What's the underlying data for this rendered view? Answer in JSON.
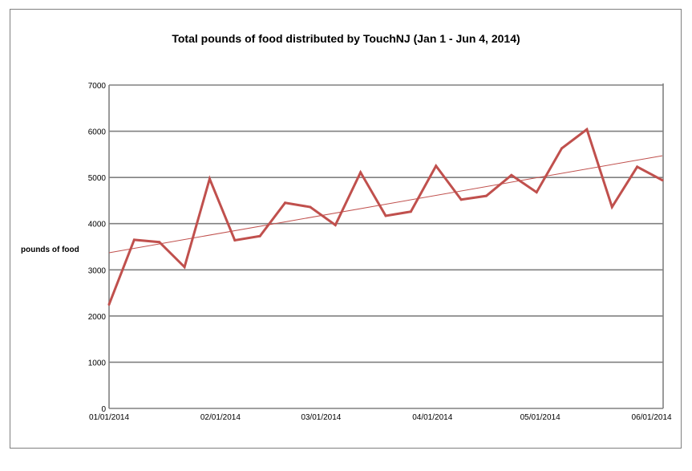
{
  "chart_data": {
    "type": "line",
    "title": "Total pounds of food distributed by TouchNJ (Jan 1 - Jun 4, 2014)",
    "xlabel": "",
    "ylabel": "pounds of food",
    "ylim": [
      0,
      7000
    ],
    "yticks": [
      0,
      1000,
      2000,
      3000,
      4000,
      5000,
      6000,
      7000
    ],
    "xlim": [
      "2014-01-01",
      "2014-06-04"
    ],
    "xticks": [
      "01/01/2014",
      "02/01/2014",
      "03/01/2014",
      "04/01/2014",
      "05/01/2014",
      "06/01/2014"
    ],
    "xtick_dates": [
      "2014-01-01",
      "2014-02-01",
      "2014-03-01",
      "2014-04-01",
      "2014-05-01",
      "2014-06-01"
    ],
    "grid": "horizontal",
    "series": [
      {
        "color": "#c0504d",
        "x": [
          "2014-01-01",
          "2014-01-08",
          "2014-01-15",
          "2014-01-22",
          "2014-01-29",
          "2014-02-05",
          "2014-02-12",
          "2014-02-19",
          "2014-02-26",
          "2014-03-05",
          "2014-03-12",
          "2014-03-19",
          "2014-03-26",
          "2014-04-02",
          "2014-04-09",
          "2014-04-16",
          "2014-04-23",
          "2014-04-30",
          "2014-05-07",
          "2014-05-14",
          "2014-05-21",
          "2014-05-28",
          "2014-06-04"
        ],
        "values": [
          2250,
          3650,
          3600,
          3060,
          4970,
          3640,
          3730,
          4450,
          4360,
          3970,
          5110,
          4170,
          4260,
          5250,
          4520,
          4600,
          5050,
          4680,
          5630,
          6040,
          4360,
          5230,
          4940
        ]
      }
    ],
    "trendline": {
      "type": "linear",
      "color": "#c0504d",
      "x": [
        "2014-01-01",
        "2014-06-04"
      ],
      "values": [
        3370,
        5470
      ]
    }
  }
}
